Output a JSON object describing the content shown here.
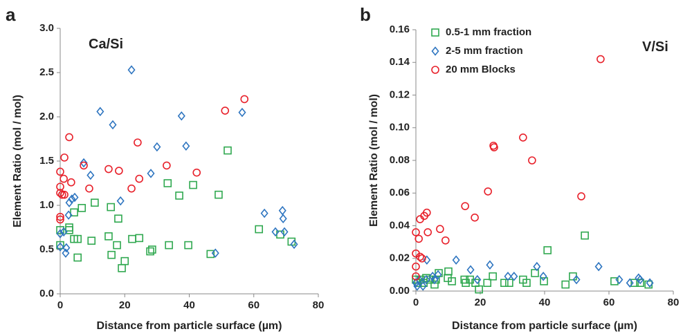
{
  "chart_data": [
    {
      "type": "scatter",
      "panel_label": "a",
      "annotation": "Ca/Si",
      "x_label": "Distance from particle surface (µm)",
      "y_label": "Element Ratio (mol / mol)",
      "xlim": [
        0,
        80
      ],
      "xticks": [
        0,
        20,
        40,
        60,
        80
      ],
      "ylim": [
        0,
        3.0
      ],
      "yticks": [
        {
          "value": 0,
          "label": "0.0"
        },
        {
          "value": 0.5,
          "label": "0.5"
        },
        {
          "value": 1,
          "label": "1.0"
        },
        {
          "value": 1.5,
          "label": "1.5"
        },
        {
          "value": 2,
          "label": "2.0"
        },
        {
          "value": 2.5,
          "label": "2.5"
        },
        {
          "value": 3,
          "label": "3.0"
        }
      ],
      "legend": false,
      "series": [
        {
          "marker": "square",
          "color": "#2fa84f",
          "x": [
            0,
            0,
            2.8,
            2.8,
            4.3,
            5.4,
            5.4,
            6.7,
            4.3,
            9.7,
            10.7,
            15,
            15.7,
            15.9,
            17.6,
            18,
            19.1,
            20,
            22.3,
            24.5,
            27.9,
            28.5,
            33.7,
            33.3,
            36.9,
            39.7,
            41.2,
            46.6,
            49.1,
            51.9,
            61.6,
            68.2,
            71.7
          ],
          "values": [
            0.55,
            0.72,
            0.75,
            0.72,
            0.92,
            0.62,
            0.41,
            0.97,
            0.62,
            0.6,
            1.03,
            0.65,
            0.98,
            0.44,
            0.55,
            0.85,
            0.29,
            0.37,
            0.62,
            0.63,
            0.48,
            0.5,
            0.55,
            1.25,
            1.11,
            0.55,
            1.23,
            0.45,
            1.12,
            1.62,
            0.73,
            0.67,
            0.59
          ]
        },
        {
          "marker": "diamond",
          "color": "#2e75c0",
          "x": [
            0,
            0,
            1.1,
            1.9,
            1.7,
            2.6,
            2.8,
            3.6,
            4.5,
            7.3,
            9.4,
            12.4,
            16.3,
            18.7,
            22.1,
            28.1,
            30,
            37.6,
            39,
            48.1,
            56.4,
            63.3,
            66.7,
            68.9,
            69.1,
            69.5,
            72.5
          ],
          "values": [
            0.68,
            0.53,
            0.7,
            0.52,
            0.46,
            0.89,
            1.03,
            1.07,
            1.09,
            1.48,
            1.34,
            2.06,
            1.91,
            1.05,
            2.53,
            1.36,
            1.66,
            2.01,
            1.67,
            0.46,
            2.05,
            0.91,
            0.7,
            0.94,
            0.85,
            0.7,
            0.56
          ]
        },
        {
          "marker": "circle",
          "color": "#e8202a",
          "x": [
            0,
            0,
            0,
            0,
            0,
            0.6,
            1.1,
            1.3,
            1.3,
            2.8,
            3.4,
            7.3,
            9,
            15,
            18.2,
            22.1,
            24.5,
            24,
            33,
            42.3,
            51.1,
            57.1
          ],
          "values": [
            1.38,
            1.21,
            1.14,
            0.87,
            0.84,
            1.12,
            1.3,
            1.54,
            1.12,
            1.77,
            1.26,
            1.45,
            1.19,
            1.41,
            1.39,
            1.19,
            1.3,
            1.71,
            1.45,
            1.37,
            2.07,
            2.2
          ]
        }
      ]
    },
    {
      "type": "scatter",
      "panel_label": "b",
      "annotation": "V/Si",
      "x_label": "Distance from particle surface (µm)",
      "y_label": "Element Ratio (mol / mol)",
      "xlim": [
        0,
        80
      ],
      "xticks": [
        0,
        20,
        40,
        60,
        80
      ],
      "ylim": [
        0,
        0.16
      ],
      "yticks": [
        {
          "value": 0,
          "label": "0.00"
        },
        {
          "value": 0.02,
          "label": "0.02"
        },
        {
          "value": 0.04,
          "label": "0.04"
        },
        {
          "value": 0.06,
          "label": "0.06"
        },
        {
          "value": 0.08,
          "label": "0.08"
        },
        {
          "value": 0.1,
          "label": "0.10"
        },
        {
          "value": 0.12,
          "label": "0.12"
        },
        {
          "value": 0.14,
          "label": "0.14"
        },
        {
          "value": 0.16,
          "label": "0.16"
        }
      ],
      "legend": "upper left",
      "series": [
        {
          "name": "0.5-1 mm fraction",
          "marker": "square",
          "color": "#2fa84f",
          "x": [
            0,
            0.6,
            1.5,
            2.4,
            3.2,
            4.5,
            5.8,
            6.2,
            7.1,
            9.9,
            10.1,
            11.2,
            15.1,
            15.5,
            16.8,
            18.5,
            19.6,
            22.2,
            23.9,
            27.5,
            29,
            33.3,
            34.4,
            37,
            39.8,
            40.9,
            46.5,
            48.8,
            52.5,
            61.7,
            68,
            69.7,
            72.3
          ],
          "values": [
            0.007,
            0.005,
            0.007,
            0.005,
            0.008,
            0.007,
            0.004,
            0.007,
            0.011,
            0.008,
            0.012,
            0.006,
            0.007,
            0.005,
            0.007,
            0.005,
            0.001,
            0.005,
            0.009,
            0.005,
            0.005,
            0.007,
            0.005,
            0.011,
            0.006,
            0.025,
            0.004,
            0.009,
            0.034,
            0.006,
            0.005,
            0.005,
            0.004
          ]
        },
        {
          "name": "2-5 mm fraction",
          "marker": "diamond",
          "color": "#2e75c0",
          "x": [
            0,
            0.4,
            1.1,
            2.2,
            3.2,
            3.4,
            5.2,
            5.8,
            6.9,
            12.5,
            17,
            19.1,
            23,
            28.6,
            30.5,
            37.6,
            39.6,
            49.9,
            56.8,
            63.2,
            66.5,
            69.2,
            69.7,
            72.7
          ],
          "values": [
            0.005,
            0.003,
            0.007,
            0.003,
            0.007,
            0.019,
            0.009,
            0.007,
            0.01,
            0.019,
            0.013,
            0.007,
            0.016,
            0.009,
            0.009,
            0.015,
            0.009,
            0.007,
            0.015,
            0.007,
            0.005,
            0.008,
            0.007,
            0.005
          ]
        },
        {
          "name": "20 mm Blocks",
          "marker": "circle",
          "color": "#e8202a",
          "x": [
            0,
            0,
            0,
            0,
            0.9,
            1.3,
            1.3,
            1.9,
            2.6,
            3.4,
            3.7,
            7.5,
            9.2,
            15.3,
            18.3,
            22.4,
            24.1,
            24.3,
            33.3,
            36.1,
            51.4,
            57.4
          ],
          "values": [
            0.036,
            0.023,
            0.015,
            0.009,
            0.032,
            0.044,
            0.021,
            0.02,
            0.046,
            0.048,
            0.036,
            0.038,
            0.031,
            0.052,
            0.045,
            0.061,
            0.089,
            0.088,
            0.094,
            0.08,
            0.058,
            0.142
          ]
        }
      ]
    }
  ]
}
